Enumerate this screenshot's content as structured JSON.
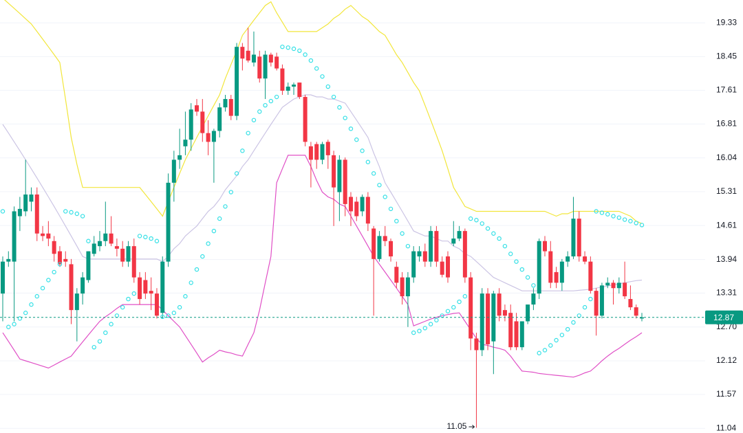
{
  "chart_data": {
    "type": "candlestick",
    "ohlc": [
      [
        13.3,
        14.0,
        12.8,
        13.9
      ],
      [
        13.9,
        14.1,
        13.8,
        13.95
      ],
      [
        13.9,
        15.0,
        12.8,
        14.9
      ],
      [
        14.8,
        15.2,
        14.5,
        14.95
      ],
      [
        14.9,
        16.0,
        14.8,
        15.25
      ],
      [
        15.1,
        15.4,
        14.9,
        15.25
      ],
      [
        15.25,
        15.4,
        14.3,
        14.45
      ],
      [
        14.45,
        14.6,
        14.3,
        14.4
      ],
      [
        14.45,
        14.7,
        14.2,
        14.35
      ],
      [
        14.3,
        14.4,
        13.9,
        14.05
      ],
      [
        14.1,
        14.2,
        13.8,
        13.85
      ],
      [
        13.95,
        14.1,
        13.8,
        13.9
      ],
      [
        13.85,
        13.95,
        12.75,
        13.0
      ],
      [
        13.0,
        13.4,
        12.45,
        13.3
      ],
      [
        13.3,
        13.7,
        13.1,
        13.6
      ],
      [
        13.55,
        14.1,
        13.5,
        14.1
      ],
      [
        14.05,
        14.4,
        14.0,
        14.25
      ],
      [
        14.2,
        14.5,
        14.1,
        14.3
      ],
      [
        14.3,
        15.1,
        14.2,
        14.45
      ],
      [
        14.45,
        14.8,
        14.2,
        14.25
      ],
      [
        14.2,
        14.35,
        14.0,
        14.15
      ],
      [
        14.15,
        14.3,
        13.8,
        13.9
      ],
      [
        13.9,
        14.3,
        13.8,
        14.2
      ],
      [
        14.2,
        14.35,
        13.5,
        13.6
      ],
      [
        13.6,
        13.7,
        13.1,
        13.2
      ],
      [
        13.55,
        13.7,
        13.2,
        13.3
      ],
      [
        13.35,
        13.6,
        13.0,
        13.3
      ],
      [
        13.3,
        13.4,
        12.85,
        12.9
      ],
      [
        12.95,
        14.0,
        12.85,
        13.9
      ],
      [
        13.9,
        15.7,
        13.8,
        15.5
      ],
      [
        15.5,
        16.2,
        15.1,
        16.0
      ],
      [
        16.0,
        16.7,
        15.8,
        16.1
      ],
      [
        16.3,
        17.1,
        16.1,
        16.45
      ],
      [
        16.45,
        17.3,
        16.2,
        17.15
      ],
      [
        17.25,
        17.4,
        17.0,
        17.1
      ],
      [
        17.1,
        17.4,
        16.4,
        16.6
      ],
      [
        16.6,
        16.9,
        16.1,
        16.4
      ],
      [
        16.4,
        16.7,
        15.5,
        16.65
      ],
      [
        16.65,
        17.3,
        16.5,
        17.2
      ],
      [
        17.2,
        17.5,
        17.1,
        17.4
      ],
      [
        17.4,
        17.5,
        16.9,
        17.0
      ],
      [
        17.0,
        18.8,
        16.9,
        18.7
      ],
      [
        18.7,
        18.8,
        18.1,
        18.4
      ],
      [
        18.6,
        19.2,
        18.3,
        18.35
      ],
      [
        18.3,
        19.1,
        18.2,
        18.5
      ],
      [
        18.45,
        18.6,
        17.8,
        17.9
      ],
      [
        17.9,
        18.6,
        17.4,
        18.5
      ],
      [
        18.5,
        18.55,
        18.2,
        18.3
      ],
      [
        18.45,
        18.55,
        18.1,
        18.15
      ],
      [
        18.15,
        18.25,
        17.5,
        17.6
      ],
      [
        17.6,
        17.8,
        17.5,
        17.7
      ],
      [
        17.7,
        17.8,
        17.5,
        17.75
      ],
      [
        17.8,
        17.8,
        17.4,
        17.45
      ],
      [
        17.45,
        17.5,
        16.3,
        16.4
      ],
      [
        16.3,
        16.4,
        15.4,
        16.0
      ],
      [
        16.35,
        16.4,
        15.8,
        16.0
      ],
      [
        16.0,
        16.4,
        15.9,
        16.35
      ],
      [
        16.4,
        16.45,
        15.8,
        16.1
      ],
      [
        16.1,
        16.2,
        14.6,
        15.4
      ],
      [
        15.3,
        16.1,
        14.7,
        16.0
      ],
      [
        16.0,
        16.05,
        14.8,
        15.05
      ],
      [
        15.2,
        15.3,
        14.6,
        14.9
      ],
      [
        15.1,
        15.2,
        14.7,
        14.8
      ],
      [
        14.9,
        15.25,
        14.8,
        15.2
      ],
      [
        15.2,
        15.3,
        14.5,
        14.65
      ],
      [
        14.55,
        14.6,
        12.9,
        13.95
      ],
      [
        13.95,
        14.5,
        13.9,
        14.4
      ],
      [
        14.4,
        14.6,
        14.2,
        14.3
      ],
      [
        14.3,
        14.35,
        13.9,
        14.0
      ],
      [
        13.8,
        13.9,
        13.4,
        13.5
      ],
      [
        13.6,
        13.7,
        13.1,
        13.25
      ],
      [
        13.25,
        13.7,
        12.7,
        13.6
      ],
      [
        13.6,
        14.2,
        13.5,
        14.1
      ],
      [
        14.0,
        14.2,
        13.9,
        14.1
      ],
      [
        14.1,
        14.25,
        13.8,
        13.9
      ],
      [
        13.9,
        14.6,
        13.8,
        14.5
      ],
      [
        14.5,
        14.6,
        13.8,
        13.9
      ],
      [
        13.9,
        14.0,
        13.6,
        13.65
      ],
      [
        14.0,
        14.1,
        13.5,
        13.6
      ],
      [
        14.25,
        14.7,
        14.2,
        14.35
      ],
      [
        14.35,
        14.6,
        14.3,
        14.5
      ],
      [
        14.5,
        14.55,
        13.5,
        13.6
      ],
      [
        13.6,
        13.7,
        12.3,
        12.5
      ],
      [
        12.5,
        12.6,
        11.05,
        12.3
      ],
      [
        12.3,
        13.4,
        12.2,
        13.3
      ],
      [
        13.3,
        13.4,
        12.3,
        12.4
      ],
      [
        12.45,
        13.35,
        11.9,
        13.3
      ],
      [
        13.3,
        13.4,
        12.8,
        12.9
      ],
      [
        13.0,
        13.1,
        12.8,
        12.9
      ],
      [
        12.95,
        13.1,
        12.3,
        12.35
      ],
      [
        12.8,
        12.95,
        12.3,
        12.35
      ],
      [
        12.35,
        12.8,
        12.3,
        12.8
      ],
      [
        12.8,
        13.1,
        12.75,
        13.1
      ],
      [
        13.1,
        13.4,
        13.0,
        13.3
      ],
      [
        13.3,
        14.35,
        13.2,
        14.3
      ],
      [
        14.3,
        14.4,
        14.0,
        14.1
      ],
      [
        14.1,
        14.3,
        13.4,
        13.5
      ],
      [
        13.7,
        13.8,
        13.4,
        13.5
      ],
      [
        13.5,
        13.95,
        13.35,
        13.9
      ],
      [
        13.9,
        14.1,
        13.8,
        14.0
      ],
      [
        14.0,
        15.2,
        13.95,
        14.75
      ],
      [
        14.75,
        14.9,
        13.9,
        14.0
      ],
      [
        14.0,
        14.1,
        13.85,
        13.9
      ],
      [
        13.9,
        14.0,
        13.3,
        13.35
      ],
      [
        13.35,
        13.4,
        12.55,
        12.9
      ],
      [
        12.9,
        13.5,
        12.85,
        13.45
      ],
      [
        13.45,
        13.6,
        13.4,
        13.5
      ],
      [
        13.5,
        13.55,
        13.1,
        13.4
      ],
      [
        13.4,
        13.6,
        13.3,
        13.5
      ],
      [
        13.5,
        13.9,
        13.2,
        13.25
      ],
      [
        13.2,
        13.45,
        13.0,
        13.05
      ],
      [
        13.05,
        13.1,
        12.85,
        12.9
      ],
      [
        12.85,
        12.95,
        12.8,
        12.87
      ]
    ],
    "up_color": "#089981",
    "down_color": "#f23645",
    "upper_band": {
      "color": "#f2e63a",
      "values": [
        20.0,
        19.86,
        19.72,
        19.58,
        19.44,
        19.3,
        19.1,
        18.9,
        18.7,
        18.5,
        18.3,
        17.4,
        16.5,
        15.9,
        15.4,
        15.4,
        15.4,
        15.4,
        15.4,
        15.4,
        15.4,
        15.4,
        15.4,
        15.4,
        15.4,
        15.25,
        15.1,
        14.95,
        14.8,
        15.1,
        15.4,
        15.7,
        16.0,
        16.25,
        16.5,
        16.75,
        17.0,
        17.25,
        17.5,
        17.9,
        18.25,
        18.6,
        19.0,
        19.2,
        19.4,
        19.6,
        19.8,
        19.9,
        19.6,
        19.35,
        19.1,
        19.1,
        19.1,
        19.1,
        19.1,
        19.1,
        19.2,
        19.3,
        19.45,
        19.55,
        19.7,
        19.8,
        19.65,
        19.5,
        19.4,
        19.25,
        19.1,
        19.0,
        18.75,
        18.5,
        18.3,
        18.05,
        17.8,
        17.6,
        17.25,
        16.9,
        16.55,
        16.2,
        15.8,
        15.4,
        15.2,
        15.0,
        14.95,
        14.9,
        14.9,
        14.9,
        14.9,
        14.9,
        14.9,
        14.9,
        14.9,
        14.9,
        14.9,
        14.9,
        14.9,
        14.9,
        14.85,
        14.8,
        14.85,
        14.85,
        14.9,
        14.9,
        14.9,
        14.9,
        14.9,
        14.9,
        14.9,
        14.9,
        14.9,
        14.85,
        14.8,
        14.7,
        14.65
      ]
    },
    "middle_band": {
      "color": "#cbc4e4",
      "values": [
        16.8,
        16.6,
        16.4,
        16.2,
        16.0,
        15.8,
        15.6,
        15.4,
        15.2,
        15.0,
        14.8,
        14.6,
        14.4,
        14.2,
        14.0,
        13.95,
        13.95,
        13.95,
        13.95,
        13.95,
        13.95,
        13.95,
        13.95,
        13.95,
        13.95,
        13.95,
        13.95,
        13.95,
        13.9,
        14.0,
        14.15,
        14.25,
        14.4,
        14.5,
        14.6,
        14.75,
        14.9,
        15.0,
        15.15,
        15.35,
        15.5,
        15.65,
        15.85,
        16.0,
        16.2,
        16.4,
        16.6,
        16.8,
        17.0,
        17.2,
        17.3,
        17.4,
        17.45,
        17.5,
        17.5,
        17.45,
        17.45,
        17.4,
        17.4,
        17.35,
        17.3,
        17.1,
        16.9,
        16.7,
        16.5,
        16.15,
        15.85,
        15.5,
        15.3,
        15.1,
        14.9,
        14.7,
        14.5,
        14.45,
        14.4,
        14.4,
        14.35,
        14.3,
        14.3,
        14.2,
        14.15,
        14.05,
        14.0,
        13.9,
        13.8,
        13.7,
        13.6,
        13.55,
        13.5,
        13.45,
        13.4,
        13.35,
        13.35,
        13.35,
        13.35,
        13.35,
        13.35,
        13.35,
        13.35,
        13.35,
        13.35,
        13.36,
        13.37,
        13.38,
        13.4,
        13.42,
        13.44,
        13.46,
        13.48,
        13.5,
        13.52,
        13.54,
        13.55
      ]
    },
    "lower_band": {
      "color": "#e04fc6",
      "values": [
        12.6,
        12.45,
        12.3,
        12.15,
        12.12,
        12.09,
        12.06,
        12.03,
        12.0,
        12.05,
        12.1,
        12.15,
        12.2,
        12.32,
        12.44,
        12.56,
        12.68,
        12.8,
        12.88,
        12.95,
        13.03,
        13.1,
        13.1,
        13.1,
        13.1,
        13.1,
        13.1,
        13.1,
        13.0,
        12.9,
        12.8,
        12.7,
        12.55,
        12.4,
        12.25,
        12.1,
        12.17,
        12.23,
        12.3,
        12.27,
        12.25,
        12.22,
        12.2,
        12.4,
        12.6,
        13.0,
        13.5,
        14.0,
        15.5,
        15.8,
        16.1,
        16.1,
        16.1,
        16.1,
        15.85,
        15.55,
        15.3,
        15.2,
        15.15,
        15.05,
        15.0,
        14.8,
        14.6,
        14.4,
        14.2,
        14.0,
        13.85,
        13.7,
        13.55,
        13.4,
        13.25,
        13.1,
        12.72,
        12.76,
        12.8,
        12.84,
        12.87,
        12.9,
        12.92,
        12.94,
        12.95,
        12.8,
        12.65,
        12.5,
        12.4,
        12.38,
        12.35,
        12.33,
        12.3,
        12.2,
        12.07,
        11.95,
        11.94,
        11.93,
        11.91,
        11.9,
        11.89,
        11.88,
        11.87,
        11.86,
        11.85,
        11.88,
        11.92,
        11.95,
        12.03,
        12.12,
        12.2,
        12.27,
        12.33,
        12.4,
        12.47,
        12.53,
        12.6
      ]
    },
    "sar": {
      "color": "#33e0e6",
      "values": [
        14.9,
        12.7,
        12.75,
        12.85,
        12.95,
        13.1,
        13.25,
        13.4,
        13.55,
        13.7,
        13.85,
        14.9,
        14.88,
        14.85,
        14.8,
        14.3,
        12.35,
        12.45,
        12.6,
        12.75,
        12.9,
        13.05,
        13.2,
        13.3,
        14.4,
        14.38,
        14.35,
        14.3,
        12.88,
        12.9,
        12.95,
        13.05,
        13.25,
        13.5,
        13.75,
        14.0,
        14.25,
        14.5,
        14.75,
        15.0,
        15.3,
        15.7,
        16.2,
        16.6,
        16.9,
        17.1,
        17.25,
        17.35,
        17.45,
        18.7,
        18.68,
        18.65,
        18.6,
        18.5,
        18.35,
        18.15,
        17.95,
        17.7,
        17.45,
        17.2,
        16.95,
        16.7,
        16.45,
        16.2,
        15.95,
        15.7,
        15.45,
        15.2,
        14.95,
        14.7,
        14.45,
        14.2,
        12.6,
        12.63,
        12.68,
        12.75,
        12.82,
        12.9,
        12.98,
        13.05,
        13.15,
        13.25,
        14.75,
        14.72,
        14.65,
        14.55,
        14.45,
        14.35,
        14.2,
        14.05,
        13.9,
        13.75,
        13.6,
        13.45,
        12.25,
        12.3,
        12.38,
        12.47,
        12.56,
        12.66,
        12.78,
        12.9,
        13.05,
        13.2,
        14.9,
        14.87,
        14.84,
        14.8,
        14.77,
        14.73,
        14.7,
        14.66,
        14.62
      ]
    },
    "ylim": [
      10.97,
      19.95
    ],
    "log_scale": true,
    "yticks": [
      19.33,
      18.45,
      17.61,
      16.81,
      16.04,
      15.31,
      14.61,
      13.94,
      13.31,
      {
        "value": 12.7,
        "label": "12.70"
      },
      12.12,
      11.57,
      11.04
    ],
    "grid": true
  }
}
